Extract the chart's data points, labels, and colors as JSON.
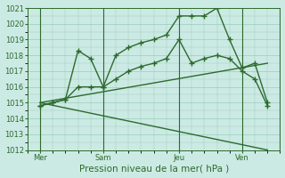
{
  "title": "",
  "xlabel": "Pression niveau de la mer( hPa )",
  "ylabel": "",
  "bg_color": "#cceae4",
  "grid_color": "#99ccbb",
  "line_color": "#2d6a2d",
  "ylim": [
    1012,
    1021
  ],
  "xlim": [
    0,
    10
  ],
  "yticks": [
    1012,
    1013,
    1014,
    1015,
    1016,
    1017,
    1018,
    1019,
    1020,
    1021
  ],
  "day_labels": [
    "Mer",
    "Sam",
    "Jeu",
    "Ven"
  ],
  "day_positions": [
    0.5,
    3.0,
    6.0,
    8.5
  ],
  "vline_positions": [
    0.5,
    3.0,
    6.0,
    8.5
  ],
  "lines": [
    {
      "x": [
        0.5,
        1.0,
        1.5,
        2.0,
        2.5,
        3.0,
        3.5,
        4.0,
        4.5,
        5.0,
        5.5,
        6.0,
        6.5,
        7.0,
        7.5,
        8.0,
        8.5,
        9.0,
        9.5
      ],
      "y": [
        1014.8,
        1015.0,
        1015.2,
        1018.3,
        1017.8,
        1016.0,
        1018.0,
        1018.5,
        1018.8,
        1019.0,
        1019.3,
        1020.5,
        1020.5,
        1020.5,
        1021.0,
        1019.0,
        1017.2,
        1017.5,
        1015.0
      ],
      "marker": "+",
      "markersize": 4,
      "linewidth": 1.0
    },
    {
      "x": [
        0.5,
        1.0,
        1.5,
        2.0,
        2.5,
        3.0,
        3.5,
        4.0,
        4.5,
        5.0,
        5.5,
        6.0,
        6.5,
        7.0,
        7.5,
        8.0,
        8.5,
        9.0,
        9.5
      ],
      "y": [
        1014.8,
        1015.0,
        1015.2,
        1016.0,
        1016.0,
        1016.0,
        1016.5,
        1017.0,
        1017.3,
        1017.5,
        1017.8,
        1019.0,
        1017.5,
        1017.8,
        1018.0,
        1017.8,
        1017.0,
        1016.5,
        1014.8
      ],
      "marker": "+",
      "markersize": 4,
      "linewidth": 1.0
    },
    {
      "x": [
        0.5,
        9.5
      ],
      "y": [
        1015.0,
        1017.5
      ],
      "marker": null,
      "markersize": 0,
      "linewidth": 1.0
    },
    {
      "x": [
        0.5,
        9.5
      ],
      "y": [
        1015.0,
        1012.0
      ],
      "marker": null,
      "markersize": 0,
      "linewidth": 1.0
    }
  ],
  "tick_fontsize": 6,
  "xlabel_fontsize": 7.5
}
